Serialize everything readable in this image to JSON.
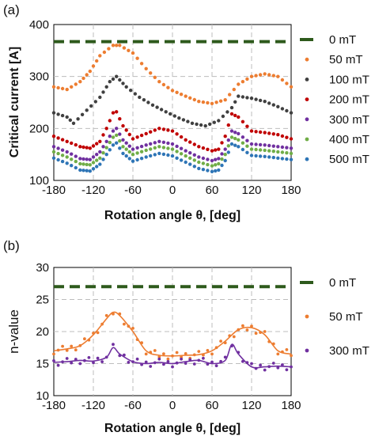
{
  "chart_data": [
    {
      "panel": "(a)",
      "type": "scatter",
      "xlabel": "Rotation angle θ, [deg]",
      "ylabel": "Critical current [A]",
      "xlim": [
        -180,
        180
      ],
      "ylim": [
        100,
        400
      ],
      "xticks": [
        -180,
        -120,
        -60,
        0,
        60,
        120,
        180
      ],
      "yticks": [
        100,
        200,
        300,
        400
      ],
      "grid": "dashed",
      "legend_position": "right",
      "reference": {
        "name": "0 mT",
        "value": 367,
        "color": "#2e5a1c",
        "style": "dashed"
      },
      "series": [
        {
          "name": "50 mT",
          "color": "#ed7d31",
          "x": [
            -180,
            -160,
            -140,
            -125,
            -110,
            -90,
            -80,
            -60,
            -40,
            -20,
            0,
            20,
            40,
            60,
            80,
            100,
            120,
            140,
            160,
            180
          ],
          "y": [
            280,
            275,
            290,
            310,
            340,
            360,
            360,
            345,
            315,
            290,
            273,
            262,
            252,
            248,
            255,
            285,
            300,
            305,
            300,
            280
          ]
        },
        {
          "name": "100 mT",
          "color": "#404040",
          "x": [
            -180,
            -160,
            -150,
            -130,
            -110,
            -95,
            -85,
            -70,
            -50,
            -30,
            -10,
            10,
            30,
            50,
            70,
            90,
            100,
            120,
            140,
            160,
            180
          ],
          "y": [
            230,
            222,
            210,
            235,
            260,
            290,
            300,
            280,
            260,
            245,
            232,
            220,
            210,
            205,
            215,
            240,
            262,
            258,
            252,
            242,
            230
          ]
        },
        {
          "name": "200 mT",
          "color": "#c00000",
          "x": [
            -180,
            -160,
            -140,
            -125,
            -110,
            -100,
            -90,
            -85,
            -75,
            -60,
            -40,
            -20,
            0,
            20,
            40,
            60,
            70,
            80,
            90,
            100,
            120,
            140,
            160,
            180
          ],
          "y": [
            185,
            175,
            165,
            162,
            175,
            200,
            230,
            232,
            205,
            180,
            190,
            200,
            195,
            178,
            165,
            157,
            160,
            185,
            228,
            222,
            195,
            192,
            188,
            180
          ]
        },
        {
          "name": "300 mT",
          "color": "#7030a0",
          "x": [
            -180,
            -160,
            -140,
            -125,
            -110,
            -100,
            -90,
            -85,
            -75,
            -60,
            -40,
            -20,
            0,
            20,
            40,
            60,
            70,
            80,
            90,
            100,
            120,
            140,
            160,
            180
          ],
          "y": [
            165,
            155,
            142,
            140,
            155,
            175,
            195,
            200,
            178,
            160,
            168,
            175,
            170,
            157,
            145,
            138,
            142,
            160,
            195,
            190,
            170,
            168,
            165,
            162
          ]
        },
        {
          "name": "400 mT",
          "color": "#70ad47",
          "x": [
            -180,
            -160,
            -140,
            -125,
            -110,
            -100,
            -90,
            -85,
            -75,
            -60,
            -40,
            -20,
            0,
            20,
            40,
            60,
            70,
            80,
            90,
            100,
            120,
            140,
            160,
            180
          ],
          "y": [
            155,
            145,
            132,
            130,
            143,
            163,
            183,
            187,
            165,
            150,
            158,
            165,
            160,
            147,
            135,
            128,
            132,
            150,
            183,
            178,
            160,
            158,
            155,
            152
          ]
        },
        {
          "name": "500 mT",
          "color": "#2e75b6",
          "x": [
            -180,
            -160,
            -140,
            -125,
            -110,
            -100,
            -90,
            -85,
            -75,
            -60,
            -40,
            -20,
            0,
            20,
            40,
            60,
            70,
            80,
            90,
            100,
            120,
            140,
            160,
            180
          ],
          "y": [
            143,
            133,
            120,
            118,
            131,
            150,
            168,
            172,
            152,
            137,
            145,
            152,
            147,
            135,
            123,
            117,
            120,
            138,
            170,
            165,
            148,
            146,
            143,
            140
          ]
        }
      ]
    },
    {
      "panel": "(b)",
      "type": "scatter",
      "xlabel": "Rotation angle θ, [deg]",
      "ylabel": "n-value",
      "xlim": [
        -180,
        180
      ],
      "ylim": [
        10,
        30
      ],
      "xticks": [
        -180,
        -120,
        -60,
        0,
        60,
        120,
        180
      ],
      "yticks": [
        10,
        15,
        20,
        25,
        30
      ],
      "grid": "dashed",
      "legend_position": "right",
      "reference": {
        "name": "0 mT",
        "value": 27,
        "color": "#2e5a1c",
        "style": "dashed"
      },
      "series": [
        {
          "name": "50 mT",
          "color": "#ed7d31",
          "x": [
            -180,
            -160,
            -140,
            -120,
            -100,
            -90,
            -80,
            -60,
            -40,
            -20,
            0,
            20,
            40,
            60,
            80,
            100,
            120,
            140,
            160,
            180
          ],
          "y": [
            17,
            17.3,
            17.8,
            19.5,
            22,
            23,
            22.5,
            20,
            17,
            16.3,
            16.2,
            16.3,
            16.4,
            17,
            18.5,
            20.3,
            20.6,
            19.5,
            17,
            16.5
          ]
        },
        {
          "name": "300 mT",
          "color": "#7030a0",
          "x": [
            -180,
            -160,
            -140,
            -120,
            -100,
            -90,
            -80,
            -60,
            -40,
            -20,
            0,
            20,
            40,
            60,
            80,
            90,
            100,
            120,
            140,
            160,
            180
          ],
          "y": [
            15.2,
            15.3,
            15.5,
            15.4,
            16,
            17.5,
            16.5,
            15.3,
            15,
            15.2,
            15,
            15.3,
            15.5,
            15,
            15.5,
            18,
            16.5,
            14.5,
            14.5,
            14.6,
            14.5
          ]
        }
      ]
    }
  ]
}
